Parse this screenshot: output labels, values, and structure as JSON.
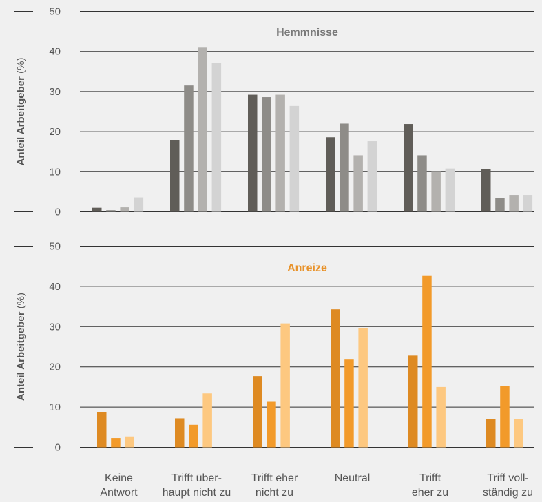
{
  "chart_data": {
    "type": "bar",
    "categories": [
      [
        "Keine",
        "Antwort"
      ],
      [
        "Trifft über-",
        "haupt nicht zu"
      ],
      [
        "Trifft eher",
        "nicht zu"
      ],
      [
        "Neutral"
      ],
      [
        "Trifft",
        "eher zu"
      ],
      [
        "Triff voll-",
        "ständig zu"
      ]
    ],
    "ylim": [
      0,
      50
    ],
    "yticks": [
      "0",
      "10",
      "20",
      "30",
      "40",
      "50"
    ],
    "grid": true,
    "panels": [
      {
        "title": "Hemmnisse",
        "title_color": "#7a7a7a",
        "ylabel": "Anteil Arbeitgeber",
        "ylabel_unit": "(%)",
        "series": [
          {
            "color": "#605d58",
            "values": [
              1.0,
              17.9,
              29.2,
              18.6,
              21.9,
              10.7
            ]
          },
          {
            "color": "#8e8c88",
            "values": [
              0.4,
              31.5,
              28.6,
              22.0,
              14.1,
              3.4
            ]
          },
          {
            "color": "#b3b1ae",
            "values": [
              1.1,
              41.1,
              29.2,
              14.1,
              10.0,
              4.2
            ]
          },
          {
            "color": "#d3d3d3",
            "values": [
              3.6,
              37.2,
              26.4,
              17.6,
              10.8,
              4.2
            ]
          }
        ]
      },
      {
        "title": "Anreize",
        "title_color": "#e8922a",
        "ylabel": "Anteil Arbeitgeber",
        "ylabel_unit": "(%)",
        "series": [
          {
            "color": "#de8a22",
            "values": [
              8.7,
              7.2,
              17.7,
              34.3,
              22.8,
              7.1
            ]
          },
          {
            "color": "#f29a2a",
            "values": [
              2.3,
              5.6,
              11.3,
              21.8,
              42.6,
              15.3
            ]
          },
          {
            "color": "#fdc880",
            "values": [
              2.7,
              13.4,
              30.8,
              29.6,
              15.0,
              7.0
            ]
          }
        ]
      }
    ]
  }
}
